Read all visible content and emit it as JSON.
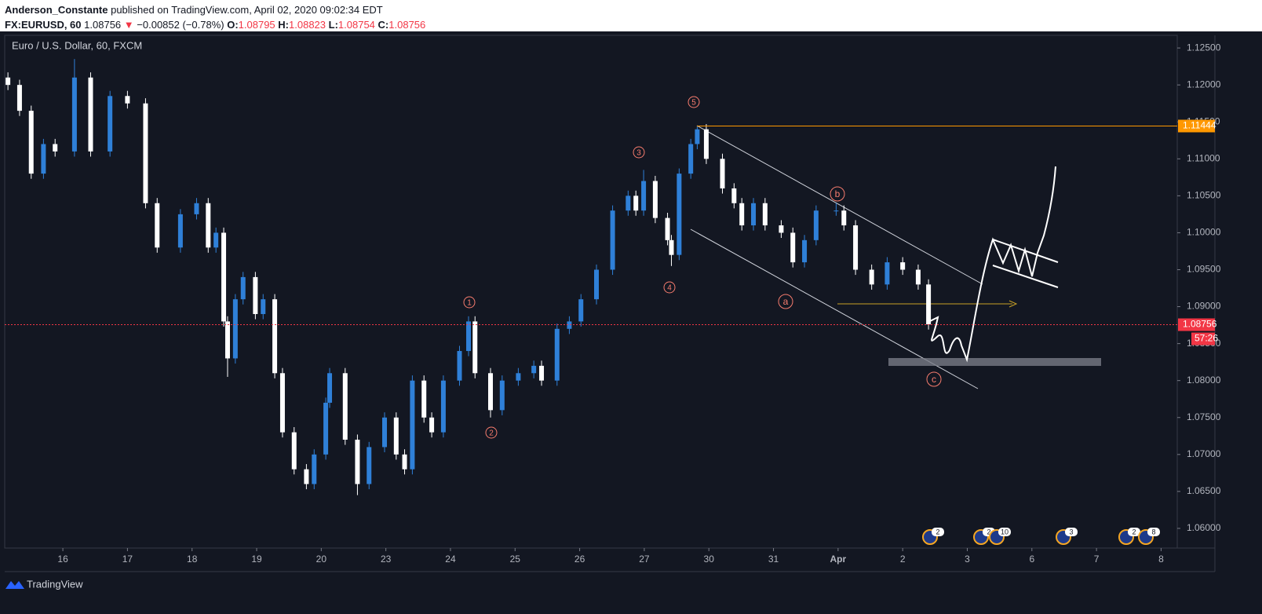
{
  "header": {
    "author": "Anderson_Constante",
    "published": "published on TradingView.com, April 02, 2020 09:02:34 EDT",
    "symbol": "FX:EURUSD, 60",
    "last": 1.08756,
    "arrow": "▼",
    "change": "−0.00852 (−0.78%)",
    "ohlc": [
      {
        "label": "O:",
        "value": 1.08795
      },
      {
        "label": "H:",
        "value": 1.08823
      },
      {
        "label": "L:",
        "value": 1.08754
      },
      {
        "label": "C:",
        "value": 1.08756
      }
    ]
  },
  "chart_data": {
    "type": "candlestick",
    "title": "Euro / U.S. Dollar, 60, FXCM",
    "up_color": "#2f80d8",
    "down_color": "#ffffff",
    "grid": false,
    "xlim": [
      -0.9,
      17.25
    ],
    "xticks": [
      {
        "value": 0,
        "label": "16"
      },
      {
        "value": 1,
        "label": "17"
      },
      {
        "value": 2,
        "label": "18"
      },
      {
        "value": 3,
        "label": "19"
      },
      {
        "value": 4,
        "label": "20"
      },
      {
        "value": 5,
        "label": "23"
      },
      {
        "value": 6,
        "label": "24"
      },
      {
        "value": 7,
        "label": "25"
      },
      {
        "value": 8,
        "label": "26"
      },
      {
        "value": 9,
        "label": "27"
      },
      {
        "value": 10,
        "label": "30"
      },
      {
        "value": 11,
        "label": "31"
      },
      {
        "value": 12,
        "label": "Apr"
      },
      {
        "value": 13,
        "label": "2"
      },
      {
        "value": 14,
        "label": "3"
      },
      {
        "value": 15,
        "label": "6"
      },
      {
        "value": 16,
        "label": "7"
      },
      {
        "value": 17,
        "label": "8"
      }
    ],
    "ylim": [
      1.05734,
      1.12671
    ],
    "yticks": [
      {
        "value": 1.125,
        "label": "1.12500"
      },
      {
        "value": 1.12,
        "label": "1.12000"
      },
      {
        "value": 1.115,
        "label": "1.11500"
      },
      {
        "value": 1.11,
        "label": "1.11000"
      },
      {
        "value": 1.105,
        "label": "1.10500"
      },
      {
        "value": 1.1,
        "label": "1.10000"
      },
      {
        "value": 1.095,
        "label": "1.09500"
      },
      {
        "value": 1.09,
        "label": "1.09000"
      },
      {
        "value": 1.085,
        "label": "1.08500"
      },
      {
        "value": 1.08,
        "label": "1.08000"
      },
      {
        "value": 1.075,
        "label": "1.07500"
      },
      {
        "value": 1.07,
        "label": "1.07000"
      },
      {
        "value": 1.065,
        "label": "1.06500"
      },
      {
        "value": 1.06,
        "label": "1.06000"
      }
    ],
    "x": [
      -0.85,
      -0.67,
      -0.49,
      -0.3,
      -0.12,
      0.18,
      0.43,
      0.73,
      1.0,
      1.28,
      1.46,
      1.82,
      2.07,
      2.25,
      2.37,
      2.49,
      2.55,
      2.67,
      2.79,
      2.98,
      3.1,
      3.28,
      3.4,
      3.58,
      3.77,
      3.89,
      4.07,
      4.13,
      4.37,
      4.56,
      4.74,
      4.98,
      5.16,
      5.29,
      5.41,
      5.59,
      5.71,
      5.89,
      6.14,
      6.28,
      6.38,
      6.62,
      6.8,
      7.05,
      7.29,
      7.41,
      7.65,
      7.84,
      8.02,
      8.26,
      8.51,
      8.75,
      8.87,
      8.99,
      9.17,
      9.36,
      9.42,
      9.54,
      9.72,
      9.82,
      9.96,
      10.21,
      10.39,
      10.51,
      10.69,
      10.87,
      11.12,
      11.3,
      11.48,
      11.66,
      11.97,
      12.09,
      12.27,
      12.52,
      12.76,
      13.0,
      13.24,
      13.4
    ],
    "open": [
      1.121,
      1.12,
      1.1165,
      1.108,
      1.112,
      1.111,
      1.121,
      1.111,
      1.1185,
      1.1175,
      1.104,
      1.098,
      1.1025,
      1.104,
      1.098,
      1.1,
      1.088,
      1.083,
      1.091,
      1.094,
      1.089,
      1.091,
      1.081,
      1.073,
      1.068,
      1.066,
      1.07,
      1.077,
      1.081,
      1.072,
      1.066,
      1.071,
      1.075,
      1.07,
      1.068,
      1.08,
      1.075,
      1.073,
      1.08,
      1.084,
      1.088,
      1.081,
      1.076,
      1.08,
      1.081,
      1.082,
      1.08,
      1.087,
      1.088,
      1.091,
      1.095,
      1.103,
      1.105,
      1.103,
      1.107,
      1.102,
      1.099,
      1.097,
      1.108,
      1.112,
      1.114,
      1.11,
      1.106,
      1.104,
      1.101,
      1.104,
      1.101,
      1.1,
      1.096,
      1.099,
      1.103,
      1.103,
      1.101,
      1.095,
      1.093,
      1.096,
      1.095,
      1.093
    ],
    "high": [
      1.1217,
      1.1207,
      1.1172,
      1.1127,
      1.1127,
      1.1235,
      1.1217,
      1.1192,
      1.1192,
      1.1182,
      1.1047,
      1.1032,
      1.1047,
      1.1047,
      1.1007,
      1.1007,
      1.0887,
      1.0917,
      1.0947,
      1.0947,
      1.0917,
      1.0917,
      1.0817,
      1.0737,
      1.0687,
      1.0707,
      1.0777,
      1.0817,
      1.0817,
      1.0727,
      1.0717,
      1.0757,
      1.0757,
      1.0707,
      1.0807,
      1.0807,
      1.0757,
      1.0807,
      1.0847,
      1.0887,
      1.0887,
      1.0817,
      1.0807,
      1.0817,
      1.0827,
      1.0827,
      1.0877,
      1.0887,
      1.0917,
      1.0957,
      1.1037,
      1.1057,
      1.1057,
      1.1085,
      1.1077,
      1.1027,
      1.0997,
      1.1087,
      1.1127,
      1.1144,
      1.1147,
      1.1107,
      1.1067,
      1.1047,
      1.1047,
      1.1047,
      1.1017,
      1.1007,
      1.0997,
      1.1037,
      1.104,
      1.1037,
      1.1017,
      1.0957,
      1.0967,
      1.0967,
      1.0957,
      1.0937
    ],
    "low": [
      1.1193,
      1.1158,
      1.1073,
      1.1073,
      1.1103,
      1.1103,
      1.1103,
      1.1103,
      1.1168,
      1.1033,
      1.0973,
      1.0973,
      1.1018,
      1.0973,
      1.0973,
      1.0873,
      1.0805,
      1.0823,
      1.0903,
      1.0883,
      1.0883,
      1.0803,
      1.0723,
      1.0673,
      1.0653,
      1.0653,
      1.0693,
      1.0763,
      1.0713,
      1.0645,
      1.0653,
      1.0703,
      1.0693,
      1.0673,
      1.0673,
      1.0743,
      1.0723,
      1.0723,
      1.0793,
      1.0833,
      1.0803,
      1.075,
      1.0753,
      1.0793,
      1.0803,
      1.0793,
      1.0793,
      1.0863,
      1.0873,
      1.0903,
      1.0943,
      1.1023,
      1.1023,
      1.1023,
      1.1013,
      1.0983,
      1.0955,
      1.0963,
      1.1073,
      1.1113,
      1.1093,
      1.1053,
      1.1033,
      1.1003,
      1.1003,
      1.1003,
      1.0993,
      1.0953,
      1.0953,
      1.0983,
      1.1023,
      1.1003,
      1.0943,
      1.0923,
      1.0923,
      1.0943,
      1.0923,
      1.0869
    ],
    "close": [
      1.12,
      1.1165,
      1.108,
      1.112,
      1.111,
      1.121,
      1.111,
      1.1185,
      1.1175,
      1.104,
      1.098,
      1.1025,
      1.104,
      1.098,
      1.1,
      1.088,
      1.083,
      1.091,
      1.094,
      1.089,
      1.091,
      1.081,
      1.073,
      1.068,
      1.066,
      1.07,
      1.077,
      1.081,
      1.072,
      1.066,
      1.071,
      1.075,
      1.07,
      1.068,
      1.08,
      1.075,
      1.073,
      1.08,
      1.084,
      1.088,
      1.081,
      1.076,
      1.08,
      1.081,
      1.082,
      1.08,
      1.087,
      1.088,
      1.091,
      1.095,
      1.103,
      1.105,
      1.103,
      1.107,
      1.102,
      1.099,
      1.097,
      1.108,
      1.112,
      1.114,
      1.11,
      1.106,
      1.104,
      1.101,
      1.104,
      1.101,
      1.1,
      1.096,
      1.099,
      1.103,
      1.103,
      1.101,
      1.095,
      1.093,
      1.096,
      1.095,
      1.093,
      1.0876
    ],
    "price_lines": [
      {
        "value": 1.11444,
        "color": "#ff9800"
      },
      {
        "value": 1.08756,
        "color": "#f23645",
        "countdown": "57:26"
      }
    ],
    "annotations": [
      "1",
      "2",
      "3",
      "4",
      "5",
      "a",
      "b",
      "c"
    ],
    "events": [
      2,
      2,
      10,
      3,
      2,
      8
    ]
  },
  "footer": {
    "brand": "TradingView"
  }
}
